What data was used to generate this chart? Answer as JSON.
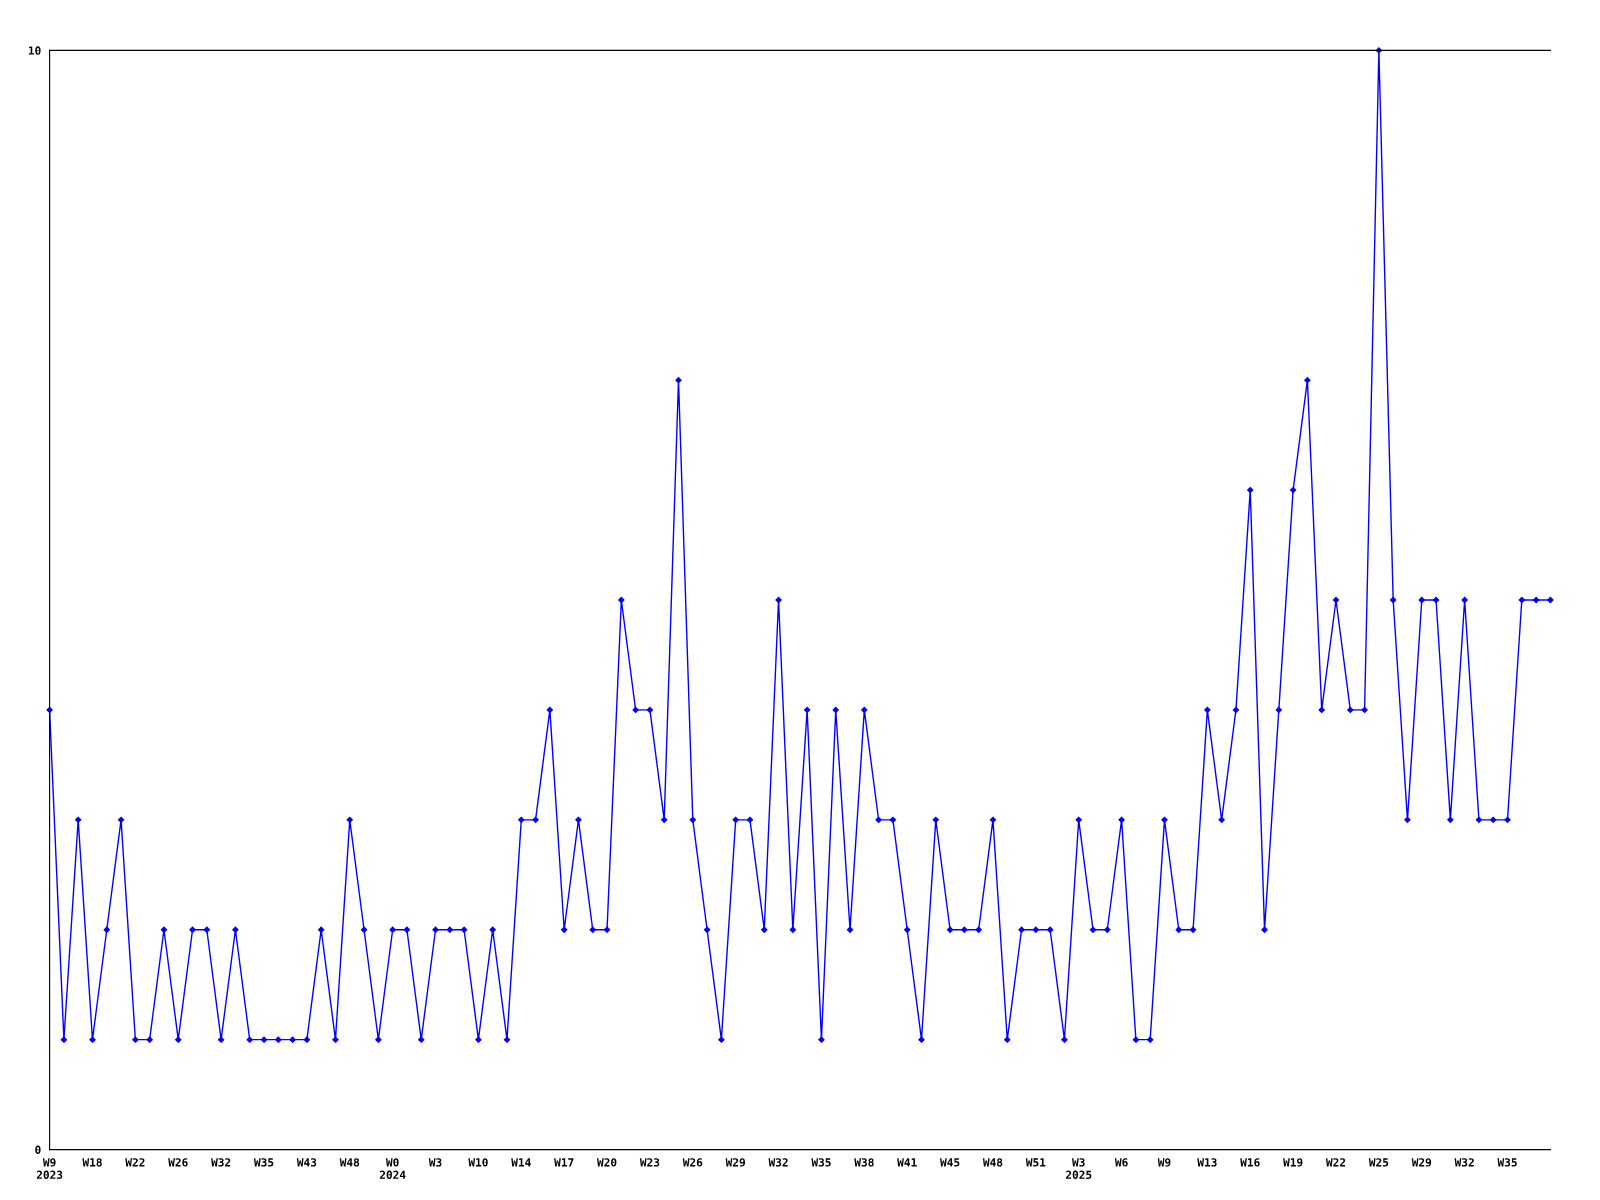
{
  "chart_data": {
    "type": "line",
    "categories": [
      "W9\n2023",
      null,
      null,
      "W18",
      null,
      null,
      "W22",
      null,
      null,
      "W26",
      null,
      null,
      "W32",
      null,
      null,
      "W35",
      null,
      null,
      "W43",
      null,
      null,
      "W48",
      null,
      null,
      "W0\n2024",
      null,
      null,
      "W3",
      null,
      null,
      "W10",
      null,
      null,
      "W14",
      null,
      null,
      "W17",
      null,
      null,
      "W20",
      null,
      null,
      "W23",
      null,
      null,
      "W26",
      null,
      null,
      "W29",
      null,
      null,
      "W32",
      null,
      null,
      "W35",
      null,
      null,
      "W38",
      null,
      null,
      "W41",
      null,
      null,
      "W45",
      null,
      null,
      "W48",
      null,
      null,
      "W51",
      null,
      null,
      "W3\n2025",
      null,
      null,
      "W6",
      null,
      null,
      "W9",
      null,
      null,
      "W13",
      null,
      null,
      "W16",
      null,
      null,
      "W19",
      null,
      null,
      "W22",
      null,
      null,
      "W25",
      null,
      null,
      "W29",
      null,
      null,
      "W32",
      null,
      null,
      "W35",
      null,
      null,
      null
    ],
    "series": [
      {
        "color": "#0000ff",
        "values": [
          4,
          1,
          3,
          1,
          2,
          3,
          1,
          1,
          2,
          1,
          2,
          2,
          1,
          2,
          1,
          1,
          1,
          1,
          1,
          2,
          1,
          3,
          2,
          1,
          2,
          2,
          1,
          2,
          2,
          2,
          1,
          2,
          1,
          3,
          3,
          4,
          2,
          3,
          2,
          2,
          5,
          4,
          4,
          3,
          7,
          3,
          2,
          1,
          3,
          3,
          2,
          5,
          2,
          4,
          1,
          4,
          2,
          4,
          3,
          3,
          2,
          1,
          3,
          2,
          2,
          2,
          3,
          1,
          2,
          2,
          2,
          1,
          3,
          2,
          2,
          3,
          1,
          1,
          3,
          2,
          2,
          4,
          3,
          4,
          6,
          2,
          4,
          6,
          7,
          4,
          5,
          4,
          4,
          10,
          5,
          3,
          5,
          5,
          3,
          5,
          3,
          3,
          3,
          5,
          5,
          5
        ]
      }
    ],
    "ylim": [
      0,
      10
    ],
    "yticks": [
      0,
      10
    ],
    "grid": false,
    "marker": "diamond",
    "line_style": "solid"
  }
}
